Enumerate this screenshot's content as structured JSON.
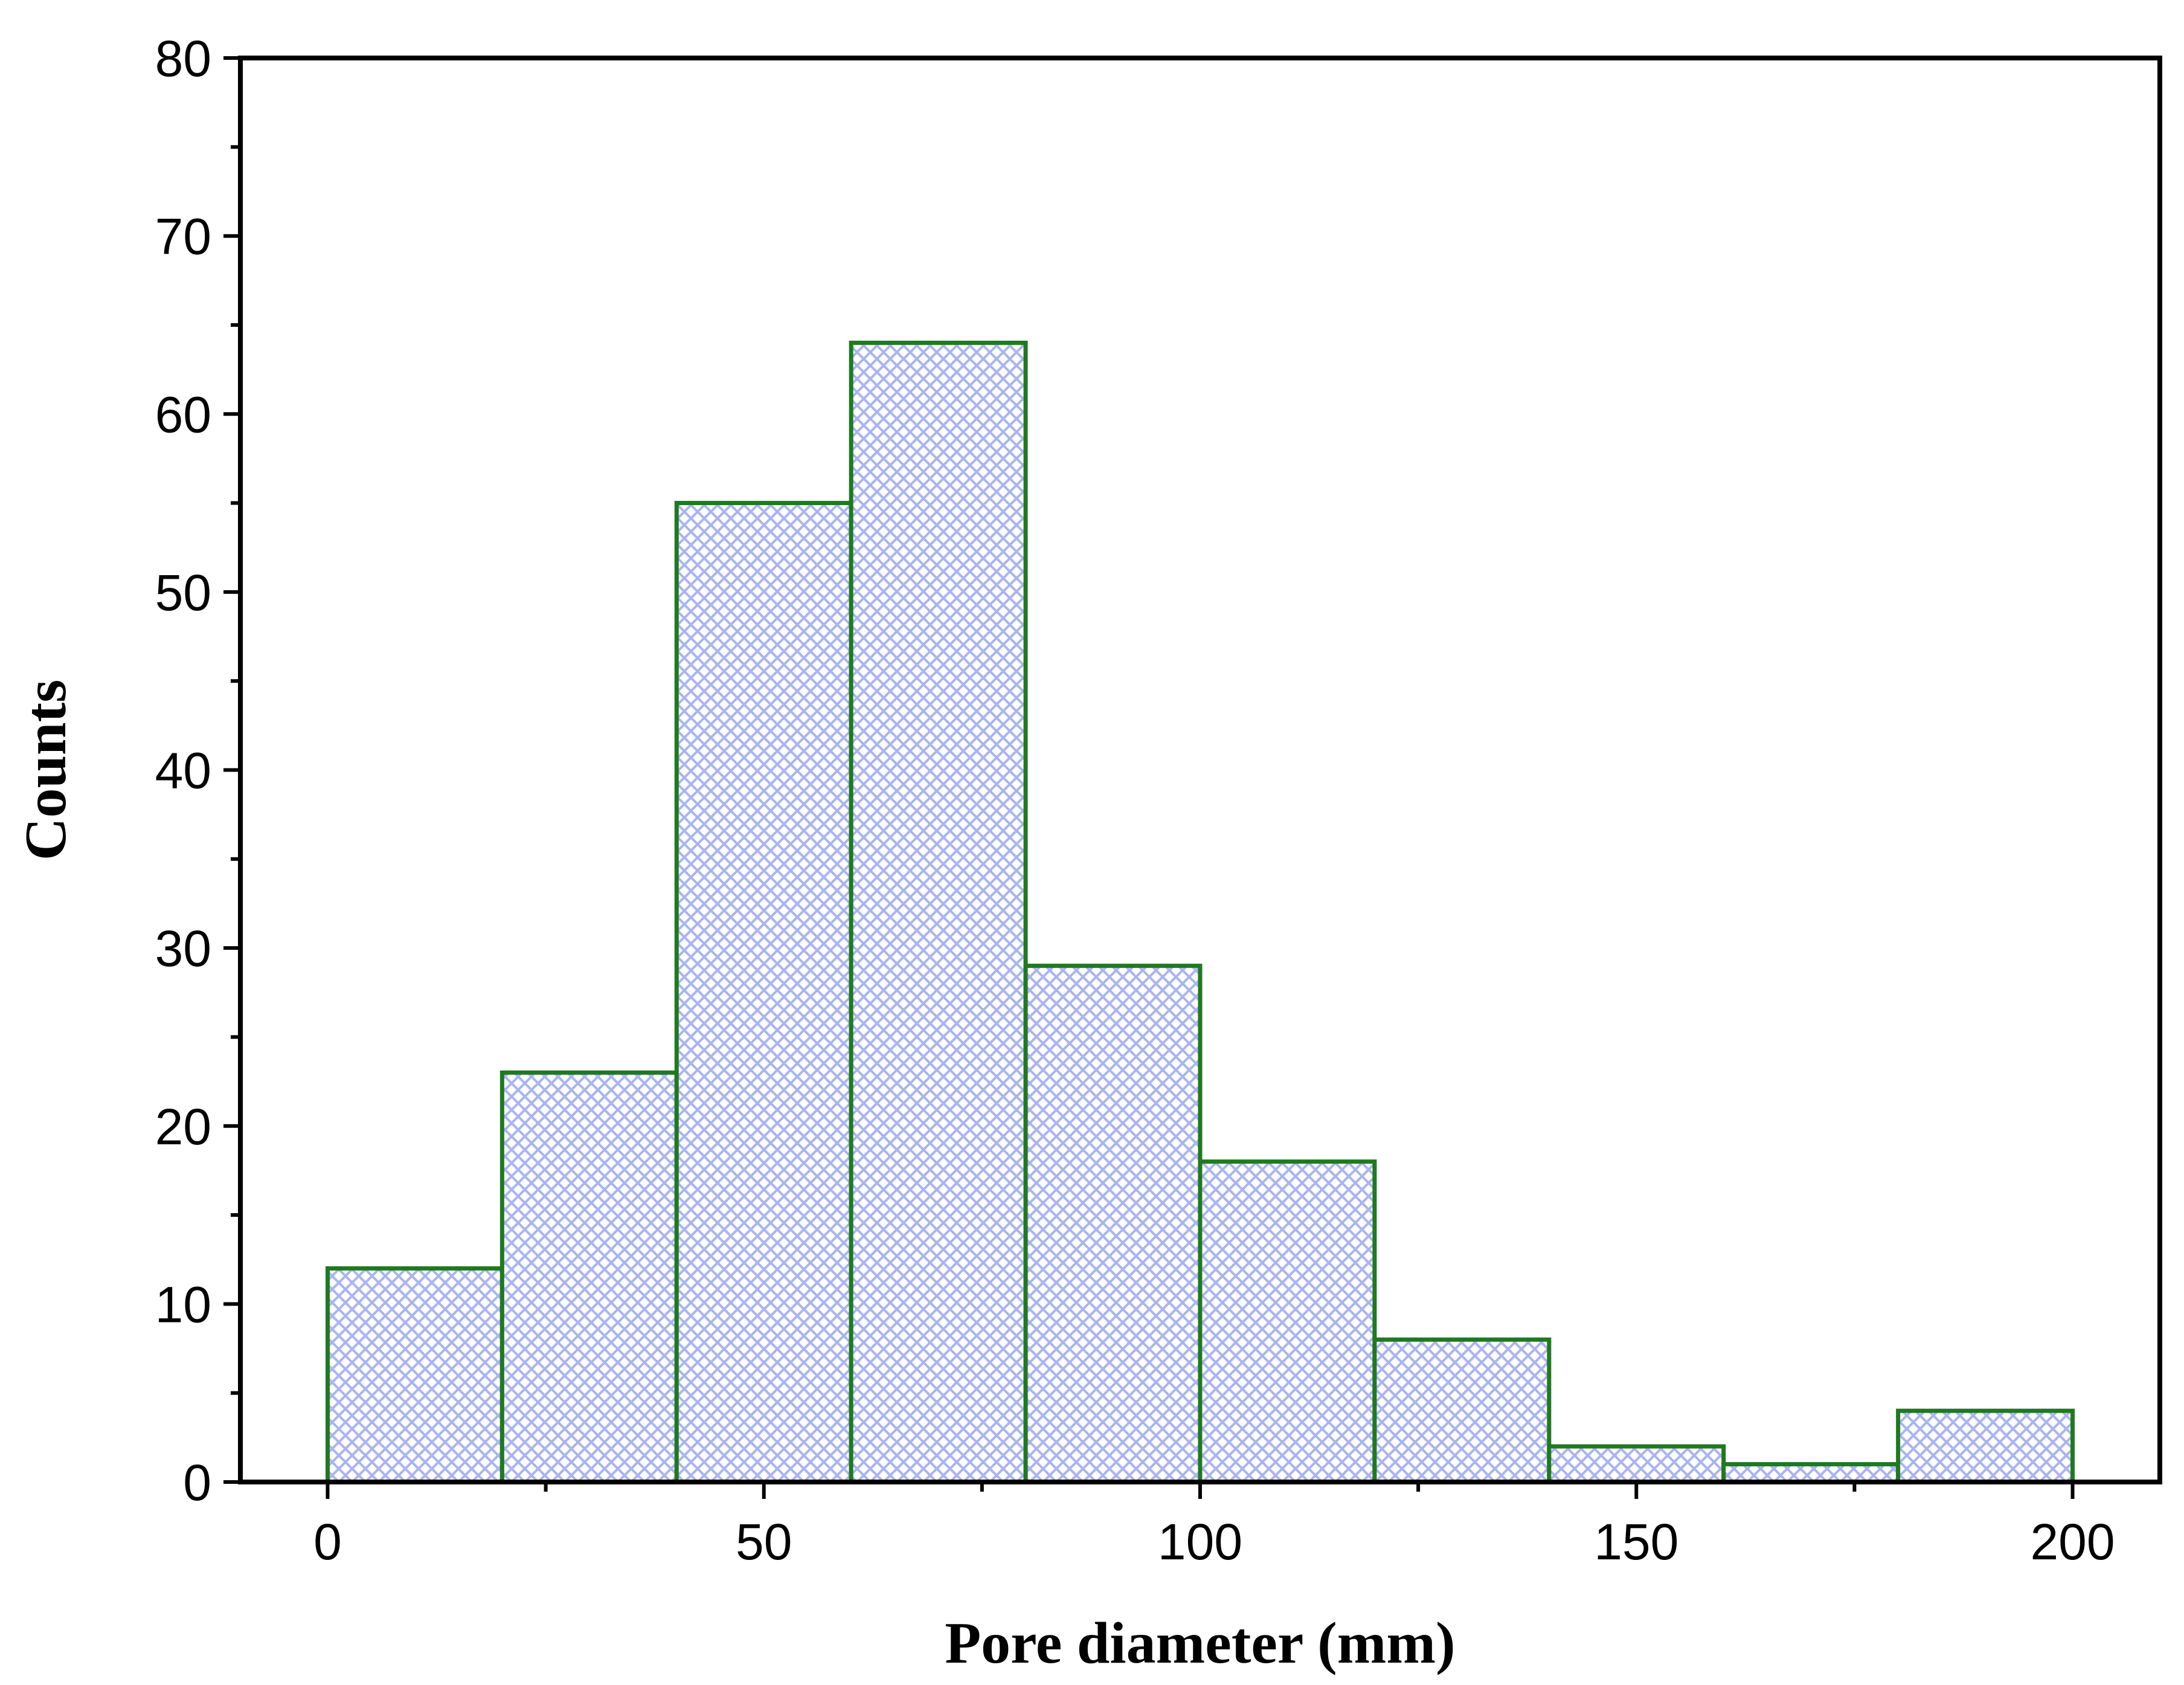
{
  "chart_data": {
    "type": "bar",
    "subtype": "histogram",
    "xlabel": "Pore diameter (mm)",
    "ylabel": "Counts",
    "xlim": [
      -10,
      210
    ],
    "ylim": [
      0,
      80
    ],
    "x_ticks": [
      0,
      50,
      100,
      150,
      200
    ],
    "y_ticks": [
      0,
      10,
      20,
      30,
      40,
      50,
      60,
      70,
      80
    ],
    "bins": [
      {
        "start": 0,
        "end": 20,
        "count": 12
      },
      {
        "start": 20,
        "end": 40,
        "count": 23
      },
      {
        "start": 40,
        "end": 60,
        "count": 55
      },
      {
        "start": 60,
        "end": 80,
        "count": 64
      },
      {
        "start": 80,
        "end": 100,
        "count": 29
      },
      {
        "start": 100,
        "end": 120,
        "count": 18
      },
      {
        "start": 120,
        "end": 140,
        "count": 8
      },
      {
        "start": 140,
        "end": 160,
        "count": 2
      },
      {
        "start": 160,
        "end": 180,
        "count": 1
      },
      {
        "start": 180,
        "end": 200,
        "count": 4
      }
    ],
    "grid": false,
    "legend": "none",
    "colors": {
      "bar_edge": "#1f7a1f",
      "bar_hatch": "#aab4f0",
      "axis": "#000000"
    },
    "fill_pattern": "crosshatch"
  }
}
